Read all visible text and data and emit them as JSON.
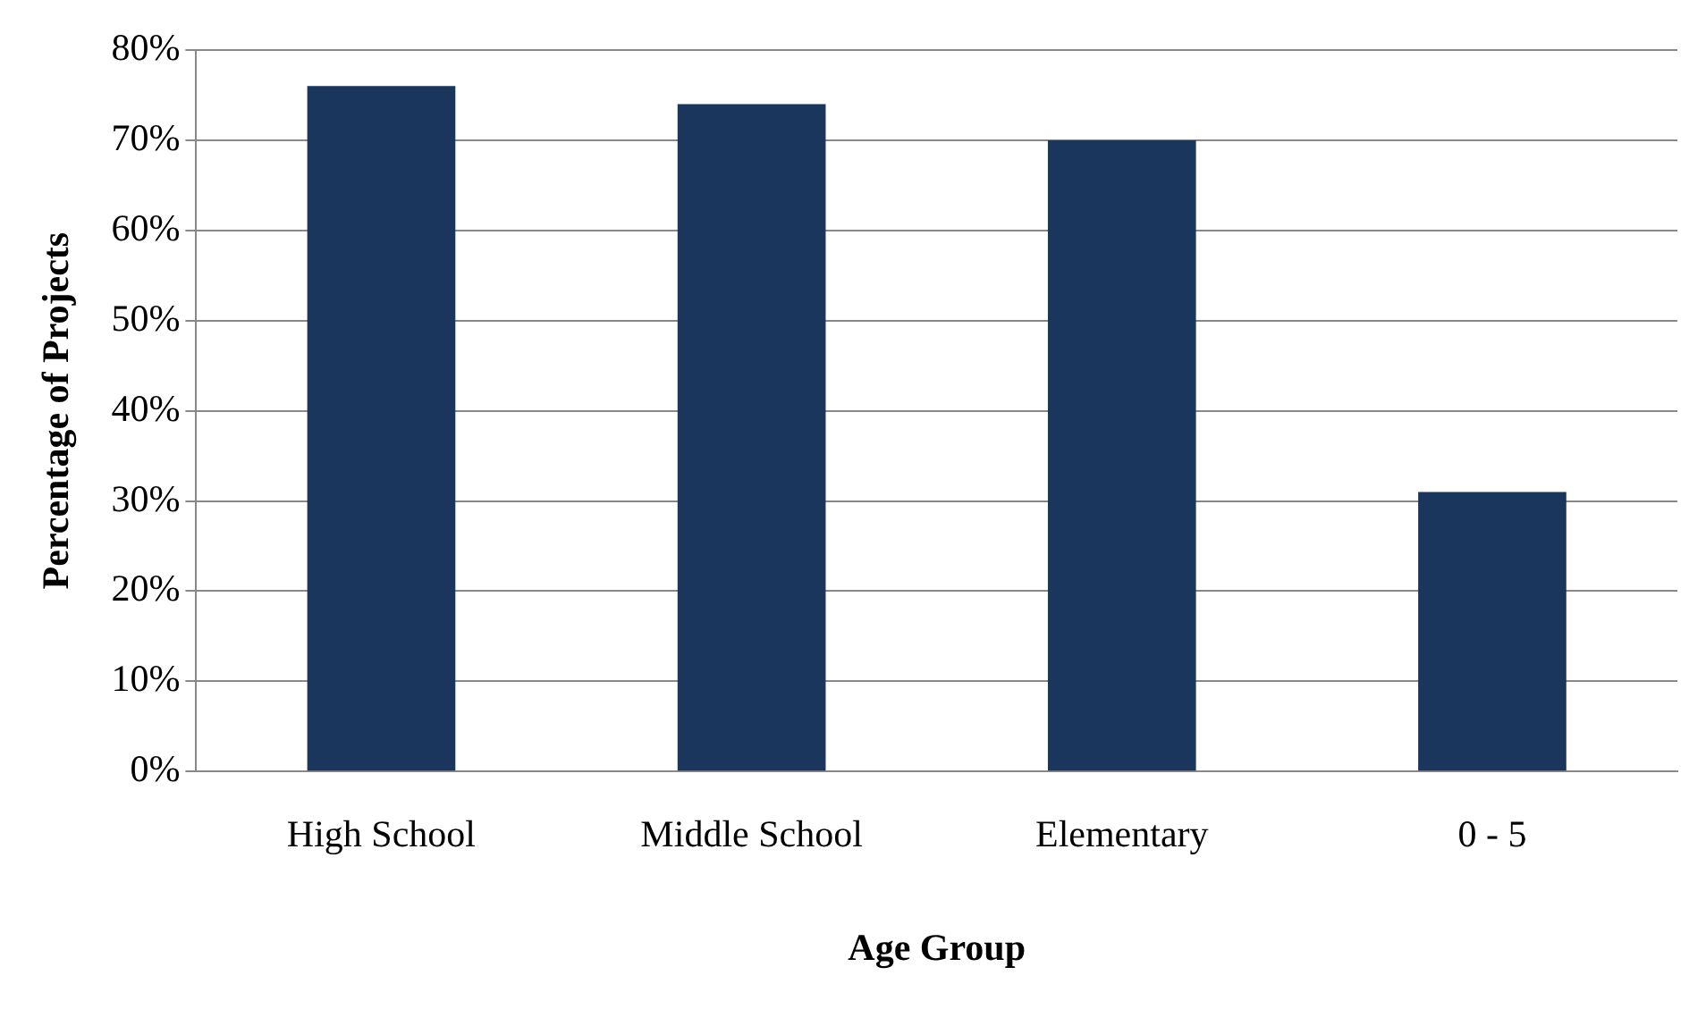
{
  "chart_data": {
    "type": "bar",
    "xlabel": "Age Group",
    "ylabel": "Percentage of Projects",
    "categories": [
      "High School",
      "Middle School",
      "Elementary",
      "0 - 5"
    ],
    "values": [
      76,
      74,
      70,
      31
    ],
    "color": "#1b365d",
    "ylim": [
      0,
      80
    ],
    "yticks": [
      {
        "value": 0,
        "label": "0%"
      },
      {
        "value": 10,
        "label": "10%"
      },
      {
        "value": 20,
        "label": "20%"
      },
      {
        "value": 30,
        "label": "30%"
      },
      {
        "value": 40,
        "label": "40%"
      },
      {
        "value": 50,
        "label": "50%"
      },
      {
        "value": 60,
        "label": "60%"
      },
      {
        "value": 70,
        "label": "70%"
      },
      {
        "value": 80,
        "label": "80%"
      }
    ],
    "grid": "y",
    "legend": false
  }
}
